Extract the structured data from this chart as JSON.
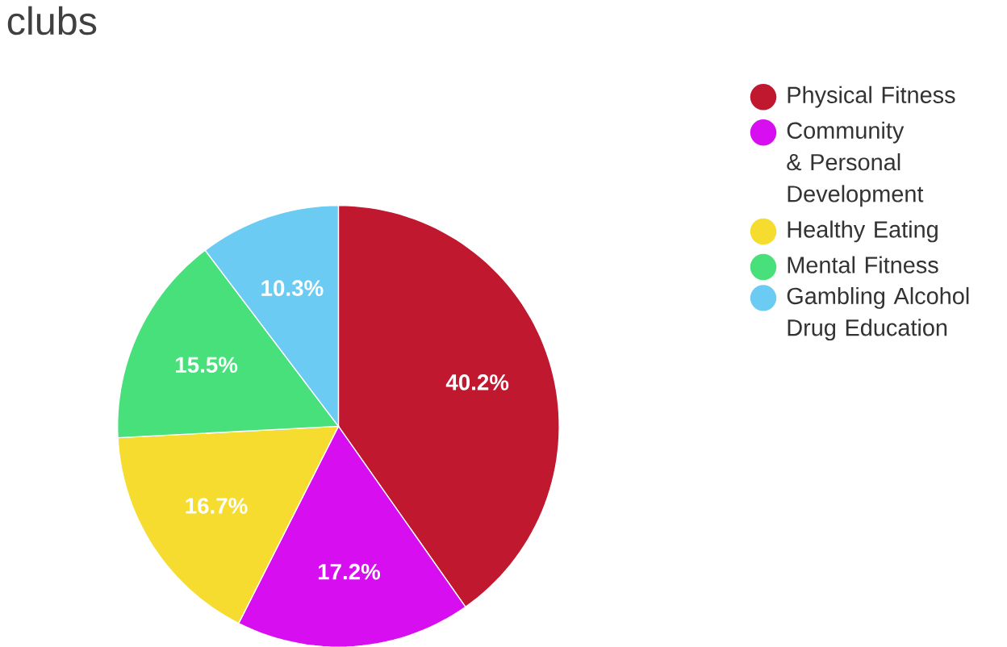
{
  "chart_data": {
    "type": "pie",
    "title": "clubs",
    "categories": [
      "Physical Fitness",
      "Community & Personal Development",
      "Healthy Eating",
      "Mental Fitness",
      "Gambling Alcohol Drug Education"
    ],
    "values": [
      40.2,
      17.2,
      16.7,
      15.5,
      10.3
    ],
    "colors": [
      "#c0182f",
      "#d60ef0",
      "#f5dc2e",
      "#47e07a",
      "#6ccbf2"
    ],
    "value_labels": [
      "40.2%",
      "17.2%",
      "16.7%",
      "15.5%",
      "10.3%"
    ],
    "legend": "right"
  }
}
